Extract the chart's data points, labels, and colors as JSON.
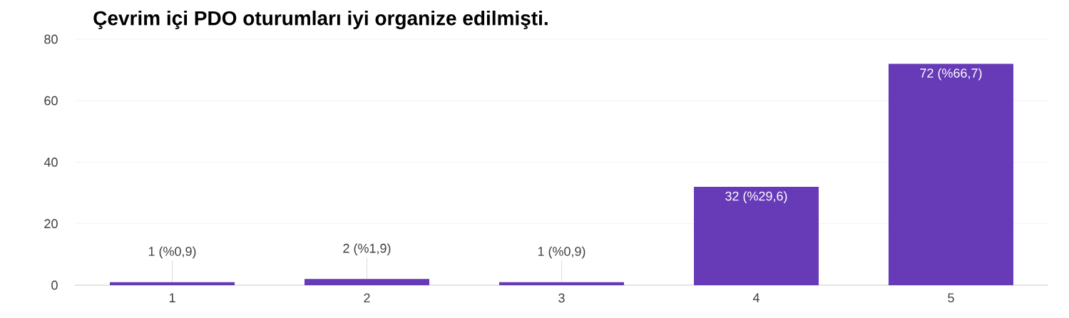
{
  "chart_data": {
    "type": "bar",
    "title": "Çevrim içi PDO oturumları iyi organize edilmişti.",
    "categories": [
      "1",
      "2",
      "3",
      "4",
      "5"
    ],
    "values": [
      1,
      2,
      1,
      32,
      72
    ],
    "value_labels": [
      "1 (%0,9)",
      "2 (%1,9)",
      "1 (%0,9)",
      "32 (%29,6)",
      "72 (%66,7)"
    ],
    "color": "#673ab7",
    "ylim": [
      0,
      80
    ],
    "yticks": [
      0,
      20,
      40,
      60,
      80
    ],
    "grid": "y"
  }
}
